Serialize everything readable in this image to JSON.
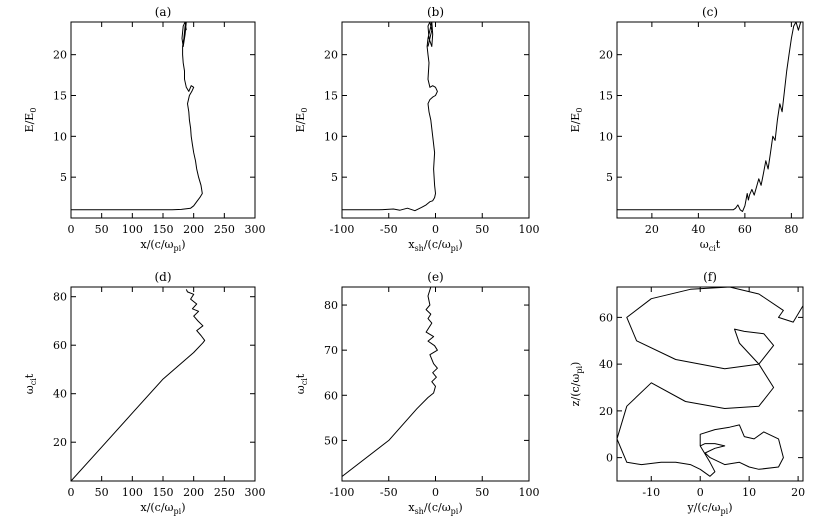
{
  "chart_data": [
    {
      "id": "a",
      "type": "line",
      "title": "(a)",
      "xlabel": "x/(c/ω_pi)",
      "xlabel_parts": [
        "x/(c/ω",
        "pi",
        ")"
      ],
      "ylabel": "E/E_0",
      "ylabel_parts": [
        "E/E",
        "0"
      ],
      "xlim": [
        0,
        300
      ],
      "ylim": [
        0,
        24
      ],
      "xticks": [
        0,
        50,
        100,
        150,
        200,
        250,
        300
      ],
      "yticks": [
        5,
        10,
        15,
        20
      ],
      "series": [
        {
          "x": [
            0,
            50,
            100,
            150,
            165,
            180,
            195,
            200,
            205,
            210,
            214,
            212,
            208,
            205,
            203,
            200,
            198,
            196,
            195,
            193,
            192,
            190,
            193,
            197,
            200,
            196,
            192,
            188,
            185,
            185,
            183,
            182,
            182,
            184,
            186,
            188,
            186,
            183,
            181,
            183,
            186,
            188
          ],
          "y": [
            1,
            1,
            1,
            1,
            1,
            1.05,
            1.2,
            1.5,
            2,
            2.5,
            3,
            4,
            5,
            6,
            7,
            8,
            9,
            10,
            11,
            12,
            13,
            14,
            15,
            15.5,
            16,
            16.2,
            15.5,
            16,
            17,
            18,
            19,
            20,
            21,
            22,
            23.5,
            24,
            22.5,
            21,
            22,
            23.5,
            24,
            23
          ]
        }
      ]
    },
    {
      "id": "b",
      "type": "line",
      "title": "(b)",
      "xlabel": "x_sh/(c/ω_pi)",
      "xlabel_parts": [
        "x",
        "sh",
        "/(c/ω",
        "pi",
        ")"
      ],
      "ylabel": "E/E_0",
      "ylabel_parts": [
        "E/E",
        "0"
      ],
      "xlim": [
        -100,
        100
      ],
      "ylim": [
        0,
        24
      ],
      "xticks": [
        -100,
        -50,
        0,
        50,
        100
      ],
      "yticks": [
        5,
        10,
        15,
        20
      ],
      "series": [
        {
          "x": [
            -100,
            -60,
            -45,
            -38,
            -30,
            -22,
            -15,
            -10,
            -6,
            -3,
            -1,
            0,
            -1,
            -2,
            -1,
            -3,
            -5,
            -7,
            -8,
            -6,
            -3,
            0,
            2,
            0,
            -3,
            -6,
            -8,
            -7,
            -8,
            -9,
            -8,
            -6,
            -4,
            -3,
            -4,
            -7,
            -8,
            -6,
            -4,
            -6,
            -8
          ],
          "y": [
            1,
            1,
            1.1,
            0.95,
            1.2,
            0.9,
            1.3,
            1.6,
            2,
            2.1,
            2.5,
            3,
            4,
            6,
            8,
            10,
            12,
            13,
            14,
            14.5,
            14.8,
            15,
            15.5,
            16,
            16.2,
            16,
            17,
            19,
            20,
            21,
            22,
            23,
            24,
            22.5,
            21,
            22,
            23.5,
            24,
            23,
            22,
            21
          ]
        }
      ]
    },
    {
      "id": "c",
      "type": "line",
      "title": "(c)",
      "xlabel": "ω_ci t",
      "xlabel_parts": [
        "ω",
        "ci",
        "t"
      ],
      "ylabel": "E/E_0",
      "ylabel_parts": [
        "E/E",
        "0"
      ],
      "xlim": [
        5,
        85
      ],
      "ylim": [
        0,
        24
      ],
      "xticks": [
        20,
        40,
        60,
        80
      ],
      "yticks": [
        5,
        10,
        15,
        20
      ],
      "series": [
        {
          "x": [
            5,
            20,
            40,
            55,
            56,
            57,
            58,
            59,
            60,
            60.5,
            61,
            61.5,
            62,
            63,
            64,
            65,
            66,
            67,
            68,
            69,
            70,
            71,
            72,
            73,
            74,
            75,
            76,
            77,
            78,
            79,
            80,
            81,
            82,
            83,
            84
          ],
          "y": [
            1,
            1,
            1,
            1,
            1.2,
            1.6,
            1.0,
            0.8,
            1.5,
            2.2,
            3,
            2.2,
            2.8,
            3.5,
            2.8,
            3.8,
            4.8,
            4.0,
            5.5,
            7,
            6,
            8,
            10,
            9.5,
            12,
            14,
            13,
            15.5,
            18,
            20,
            22,
            23.5,
            24,
            23,
            24
          ]
        }
      ]
    },
    {
      "id": "d",
      "type": "line",
      "title": "(d)",
      "xlabel": "x/(c/ω_pi)",
      "xlabel_parts": [
        "x/(c/ω",
        "pi",
        ")"
      ],
      "ylabel": "ω_ci t",
      "ylabel_parts": [
        "ω",
        "ci",
        "t"
      ],
      "xlim": [
        0,
        300
      ],
      "ylim": [
        4,
        84
      ],
      "xticks": [
        0,
        50,
        100,
        150,
        200,
        250,
        300
      ],
      "yticks": [
        20,
        40,
        60,
        80
      ],
      "series": [
        {
          "x": [
            0,
            50,
            100,
            150,
            200,
            215,
            218,
            212,
            205,
            215,
            207,
            200,
            208,
            198,
            205,
            195,
            200,
            190,
            188
          ],
          "y": [
            4,
            18,
            32,
            46,
            57,
            61,
            62,
            64,
            66,
            68,
            70,
            72,
            74,
            75,
            77,
            79,
            81,
            82,
            83
          ]
        }
      ]
    },
    {
      "id": "e",
      "type": "line",
      "title": "(e)",
      "xlabel": "x_sh/(c/ω_pi)",
      "xlabel_parts": [
        "x",
        "sh",
        "/(c/ω",
        "pi",
        ")"
      ],
      "ylabel": "ω_ci t",
      "ylabel_parts": [
        "ω",
        "ci",
        "t"
      ],
      "xlim": [
        -100,
        100
      ],
      "ylim": [
        41,
        84
      ],
      "xticks": [
        -100,
        -50,
        0,
        50,
        100
      ],
      "yticks": [
        50,
        60,
        70,
        80
      ],
      "series": [
        {
          "x": [
            -100,
            -50,
            -20,
            -8,
            -2,
            0,
            -4,
            1,
            -3,
            2,
            -2,
            -6,
            2,
            -1,
            -8,
            -2,
            -10,
            -4,
            -8,
            -5,
            -10,
            -6,
            -8,
            -5
          ],
          "y": [
            42,
            50,
            57,
            59.5,
            60.5,
            62,
            63,
            64,
            65,
            66,
            67,
            69,
            70,
            71,
            72,
            73,
            74,
            76,
            77,
            78,
            79,
            80,
            82,
            84
          ]
        }
      ]
    },
    {
      "id": "f",
      "type": "line",
      "title": "(f)",
      "xlabel": "y/(c/ω_pi)",
      "xlabel_parts": [
        "y/(c/ω",
        "pi",
        ")"
      ],
      "ylabel": "z/(c/ω_pi)",
      "ylabel_parts": [
        "z/(c/ω",
        "pi",
        ")"
      ],
      "xlim": [
        -17,
        21
      ],
      "ylim": [
        -10,
        73
      ],
      "xticks": [
        -10,
        0,
        10,
        20
      ],
      "yticks": [
        0,
        20,
        40,
        60
      ],
      "series": [
        {
          "x": [
            21,
            19,
            16,
            17,
            12,
            6,
            -2,
            -10,
            -15,
            -13,
            -5,
            5,
            12,
            15,
            13,
            9,
            7,
            8,
            12,
            15,
            12,
            5,
            -3,
            -10,
            -15,
            -17,
            -15,
            -12,
            -8,
            -5,
            -2,
            0,
            2,
            3,
            2,
            0,
            0,
            3,
            6,
            8,
            9,
            11,
            13,
            16,
            17,
            16,
            12,
            10,
            8,
            5,
            2,
            1,
            3,
            5,
            3,
            1,
            0
          ],
          "y": [
            65,
            58,
            60,
            63,
            70,
            73,
            72,
            68,
            60,
            50,
            42,
            38,
            40,
            48,
            53,
            54,
            55,
            49,
            40,
            30,
            22,
            21,
            24,
            32,
            22,
            8,
            -2,
            -3,
            -2,
            -2,
            -3,
            -5,
            -8,
            -6,
            -2,
            5,
            10,
            12,
            13,
            14,
            9,
            8,
            11,
            8,
            0,
            -4,
            -5,
            -4,
            -2,
            -3,
            0,
            2,
            4,
            5,
            6,
            6,
            5
          ]
        }
      ]
    }
  ]
}
